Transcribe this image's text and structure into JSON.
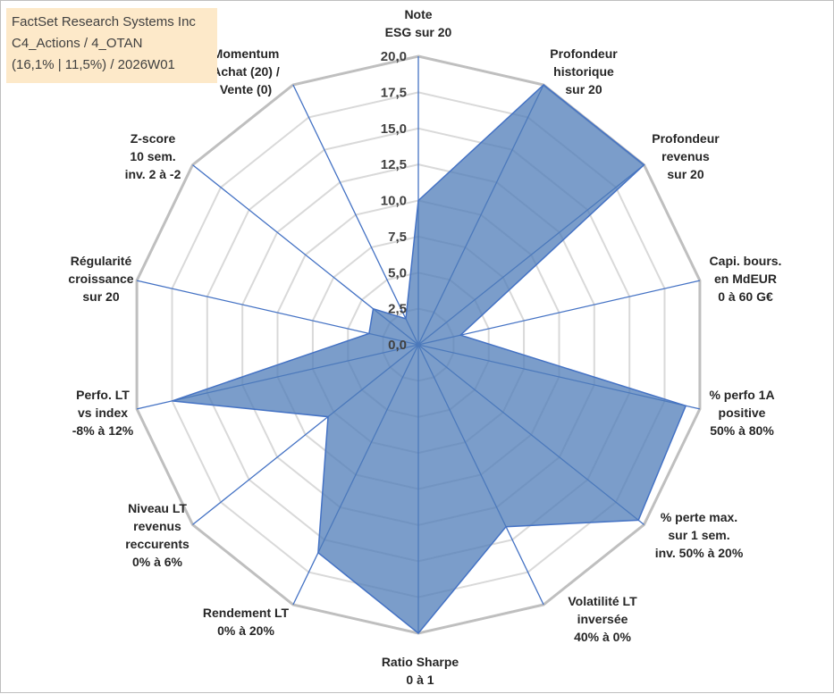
{
  "title_box": {
    "line1": "FactSet Research Systems Inc",
    "line2": "C4_Actions / 4_OTAN",
    "line3": "(16,1% | 11,5%) / 2026W01"
  },
  "colors": {
    "fill": "#4f7cb8",
    "fill_opacity": "0.75",
    "outline": "#4472c4",
    "grid_outer": "#bfbfbf",
    "grid_inner": "#d9d9d9",
    "spoke": "#4472c4"
  },
  "chart_data": {
    "type": "radar",
    "rmin": 0,
    "rmax": 20,
    "ticks": [
      "0,0",
      "2,5",
      "5,0",
      "7,5",
      "10,0",
      "12,5",
      "15,0",
      "17,5",
      "20,0"
    ],
    "tick_values": [
      0,
      2.5,
      5,
      7.5,
      10,
      12.5,
      15,
      17.5,
      20
    ],
    "axes": [
      {
        "label": [
          "Note",
          "ESG sur 20"
        ],
        "value": 10
      },
      {
        "label": [
          "Profondeur",
          "historique",
          "sur 20"
        ],
        "value": 20
      },
      {
        "label": [
          "Profondeur",
          "revenus",
          "sur 20"
        ],
        "value": 20
      },
      {
        "label": [
          "Capi. bours.",
          "en MdEUR",
          "0 à 60 G€"
        ],
        "value": 3
      },
      {
        "label": [
          "% perfo 1A",
          "positive",
          "50% à 80%"
        ],
        "value": 19
      },
      {
        "label": [
          "% perte max.",
          "sur 1 sem.",
          "inv. 50% à 20%"
        ],
        "value": 19.5
      },
      {
        "label": [
          "Volatilité LT",
          "inversée",
          "40% à 0%"
        ],
        "value": 14
      },
      {
        "label": [
          "Ratio Sharpe",
          "0 à 1"
        ],
        "value": 20
      },
      {
        "label": [
          "Rendement LT",
          "0% à 20%"
        ],
        "value": 16
      },
      {
        "label": [
          "Niveau LT",
          "revenus",
          "reccurents",
          "0% à 6%"
        ],
        "value": 8
      },
      {
        "label": [
          "Perfo. LT",
          "vs index",
          "-8% à 12%"
        ],
        "value": 17.5
      },
      {
        "label": [
          "Régularité",
          "croissance",
          "sur 20"
        ],
        "value": 3.5
      },
      {
        "label": [
          "Z-score",
          "10 sem.",
          "inv. 2 à -2"
        ],
        "value": 4
      },
      {
        "label": [
          "Momentum",
          "Achat (20) /",
          "Vente (0)"
        ],
        "value": 2
      }
    ]
  }
}
